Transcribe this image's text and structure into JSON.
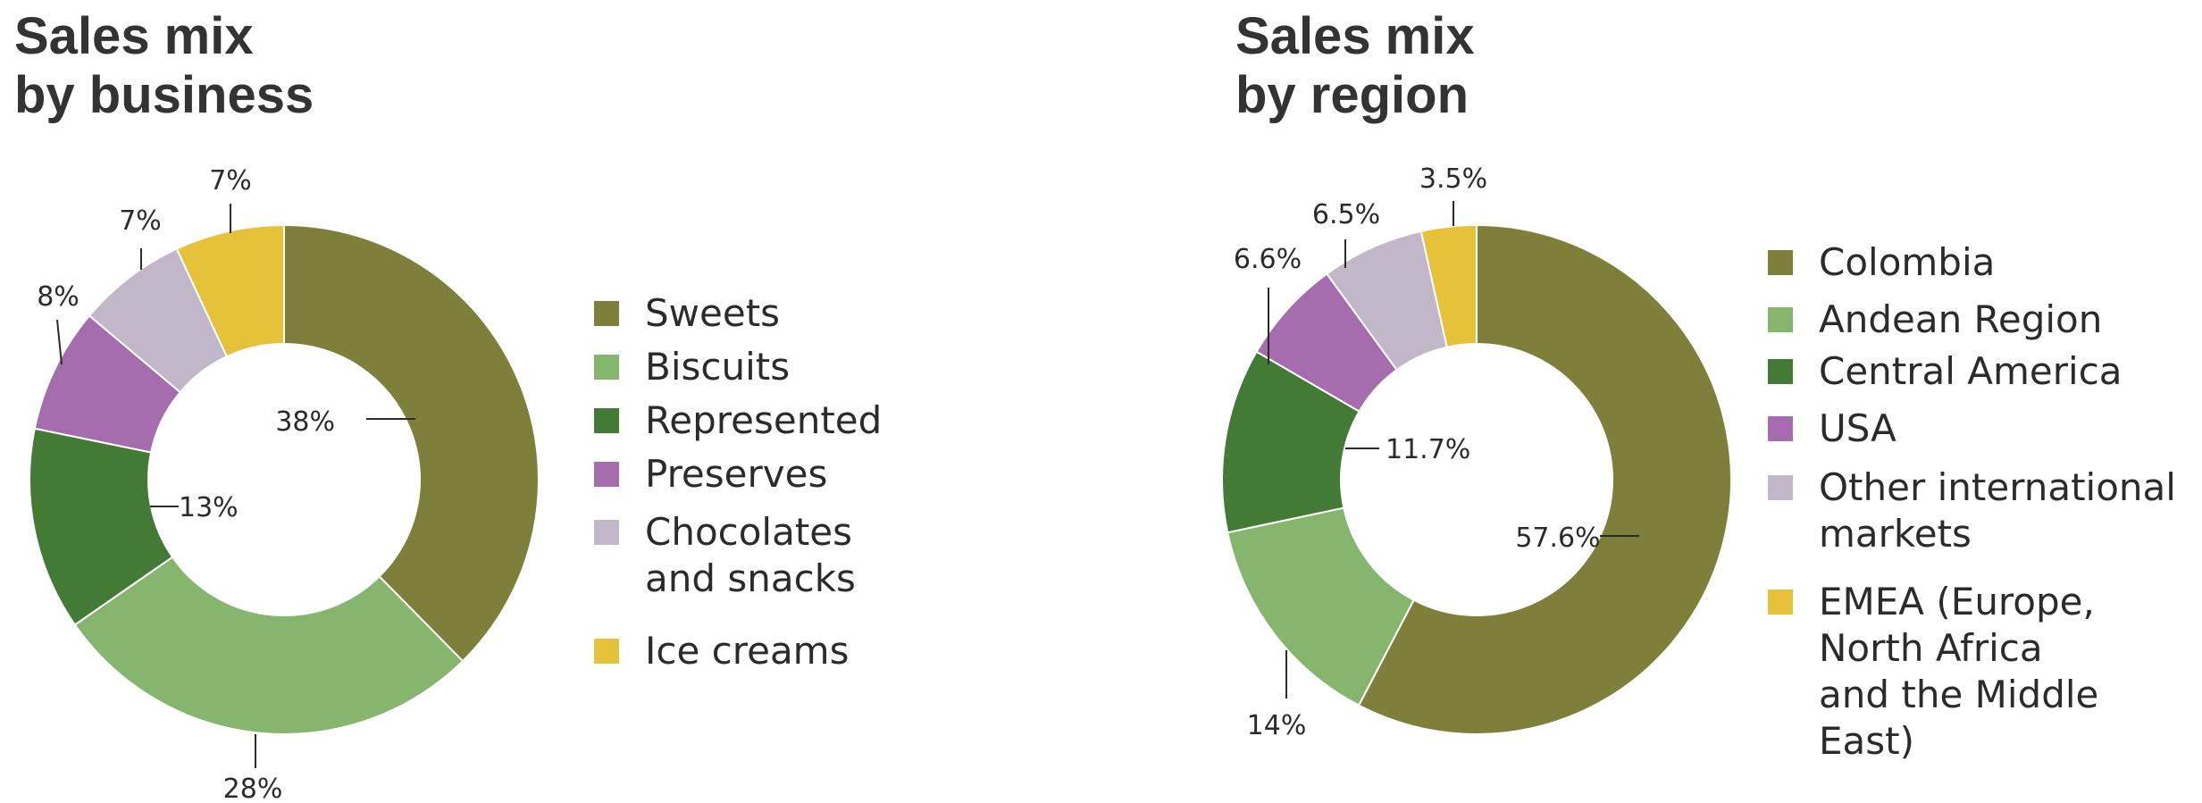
{
  "chart_data": [
    {
      "type": "pie",
      "title": "Sales mix by business",
      "title_lines": [
        "Sales mix",
        "by business"
      ],
      "categories": [
        "Sweets",
        "Biscuits",
        "Represented",
        "Preserves",
        "Chocolates and snacks",
        "Ice creams"
      ],
      "legend_lines": [
        [
          "Sweets"
        ],
        [
          "Biscuits"
        ],
        [
          "Represented"
        ],
        [
          "Preserves"
        ],
        [
          "Chocolates",
          "and snacks"
        ],
        [
          "Ice creams"
        ]
      ],
      "values": [
        38,
        28,
        13,
        8,
        7,
        7
      ],
      "value_labels": [
        "38%",
        "28%",
        "13%",
        "8%",
        "7%",
        "7%"
      ],
      "colors": [
        "#7f7f3c",
        "#86b66e",
        "#437a35",
        "#a56dae",
        "#c2b6c9",
        "#e5c23a"
      ],
      "legend_position": "right"
    },
    {
      "type": "pie",
      "title": "Sales mix by region",
      "title_lines": [
        "Sales mix",
        "by region"
      ],
      "categories": [
        "Colombia",
        "Andean Region",
        "Central America",
        "USA",
        "Other international markets",
        "EMEA (Europe, North Africa and the Middle East)"
      ],
      "legend_lines": [
        [
          "Colombia"
        ],
        [
          "Andean Region"
        ],
        [
          "Central America"
        ],
        [
          "USA"
        ],
        [
          "Other international",
          "markets"
        ],
        [
          "EMEA (Europe,",
          "North Africa",
          "and the Middle",
          "East)"
        ]
      ],
      "values": [
        57.6,
        14,
        11.7,
        6.6,
        6.5,
        3.5
      ],
      "value_labels": [
        "57.6%",
        "14%",
        "11.7%",
        "6.6%",
        "6.5%",
        "3.5%"
      ],
      "colors": [
        "#7f7f3c",
        "#86b66e",
        "#437a35",
        "#a56dae",
        "#c2b6c9",
        "#e5c23a"
      ],
      "legend_position": "right"
    }
  ]
}
